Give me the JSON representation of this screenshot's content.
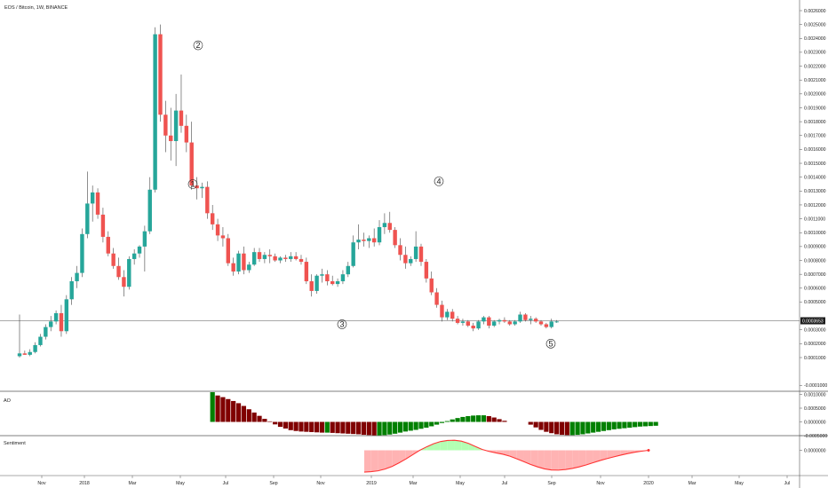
{
  "header": {
    "symbol": "EOS / Bitcoin, 1W, BINANCE"
  },
  "panels": {
    "ao_label": "AO",
    "sentiment_label": "Sentiment"
  },
  "colors": {
    "up": "#26a69a",
    "down": "#ef5350",
    "ao_up": "#008000",
    "ao_down": "#800000",
    "sentiment_line": "#ff3333",
    "sentiment_fill": "#ffb3b3",
    "sentiment_pos_fill": "#b3ffb3"
  },
  "chart_data": {
    "type": "candlestick",
    "x_axis_ticks": [
      "Nov",
      "2018",
      "Mar",
      "May",
      "Jul",
      "Sep",
      "Nov",
      "2019",
      "Mar",
      "May",
      "Jul",
      "Sep",
      "Nov",
      "2020",
      "Mar",
      "May",
      "Jul"
    ],
    "price_axis": {
      "range": [
        -0.0001,
        0.0026
      ],
      "ticks": [
        "0.0026000",
        "0.0025000",
        "0.0024000",
        "0.0023000",
        "0.0022000",
        "0.0021000",
        "0.0020000",
        "0.0019000",
        "0.0018000",
        "0.0017000",
        "0.0016000",
        "0.0015000",
        "0.0014000",
        "0.0013000",
        "0.0012000",
        "0.0011000",
        "0.0010000",
        "0.0009000",
        "0.0008000",
        "0.0007000",
        "0.0006000",
        "0.0005000",
        "0.0003000",
        "0.0002000",
        "0.0001000",
        "-0.0001000"
      ],
      "current_price": "0.0003653"
    },
    "ao_axis": {
      "ticks": [
        "0.0010000",
        "0.0005000",
        "0.0000000",
        "-0.0005000"
      ]
    },
    "sentiment_axis": {
      "ticks": [
        "0.0000000"
      ]
    },
    "wave_labels": [
      {
        "label": "1",
        "value": 0.00135
      },
      {
        "label": "2",
        "value": 0.00235
      },
      {
        "label": "3",
        "value": 0.00034
      },
      {
        "label": "4",
        "value": 0.00137
      },
      {
        "label": "5",
        "value": 0.0002
      }
    ],
    "candles": [
      {
        "o": 0.00011,
        "h": 0.00041,
        "l": 0.0001,
        "c": 0.00013
      },
      {
        "o": 0.00013,
        "h": 0.00015,
        "l": 0.00012,
        "c": 0.00012
      },
      {
        "o": 0.00012,
        "h": 0.00016,
        "l": 0.00011,
        "c": 0.00014
      },
      {
        "o": 0.00014,
        "h": 0.00021,
        "l": 0.00013,
        "c": 0.00019
      },
      {
        "o": 0.00019,
        "h": 0.00027,
        "l": 0.00018,
        "c": 0.00025
      },
      {
        "o": 0.00025,
        "h": 0.00034,
        "l": 0.00023,
        "c": 0.00032
      },
      {
        "o": 0.00032,
        "h": 0.0004,
        "l": 0.00029,
        "c": 0.00036
      },
      {
        "o": 0.00036,
        "h": 0.00044,
        "l": 0.00034,
        "c": 0.00042
      },
      {
        "o": 0.00042,
        "h": 0.00048,
        "l": 0.00025,
        "c": 0.00029
      },
      {
        "o": 0.00029,
        "h": 0.00055,
        "l": 0.00027,
        "c": 0.00052
      },
      {
        "o": 0.00052,
        "h": 0.00068,
        "l": 0.00048,
        "c": 0.00065
      },
      {
        "o": 0.00065,
        "h": 0.00076,
        "l": 0.0006,
        "c": 0.00071
      },
      {
        "o": 0.00071,
        "h": 0.00103,
        "l": 0.00068,
        "c": 0.00099
      },
      {
        "o": 0.00099,
        "h": 0.00144,
        "l": 0.00096,
        "c": 0.00121
      },
      {
        "o": 0.00121,
        "h": 0.00134,
        "l": 0.00108,
        "c": 0.00129
      },
      {
        "o": 0.00129,
        "h": 0.00132,
        "l": 0.0011,
        "c": 0.00113
      },
      {
        "o": 0.00113,
        "h": 0.00118,
        "l": 0.00093,
        "c": 0.00097
      },
      {
        "o": 0.00097,
        "h": 0.00101,
        "l": 0.00083,
        "c": 0.00085
      },
      {
        "o": 0.00085,
        "h": 0.00089,
        "l": 0.00074,
        "c": 0.00076
      },
      {
        "o": 0.00076,
        "h": 0.00082,
        "l": 0.00066,
        "c": 0.00068
      },
      {
        "o": 0.00068,
        "h": 0.00073,
        "l": 0.00054,
        "c": 0.00061
      },
      {
        "o": 0.00061,
        "h": 0.00083,
        "l": 0.00059,
        "c": 0.00081
      },
      {
        "o": 0.00081,
        "h": 0.00088,
        "l": 0.00077,
        "c": 0.00085
      },
      {
        "o": 0.00085,
        "h": 0.00091,
        "l": 0.00082,
        "c": 0.0009
      },
      {
        "o": 0.0009,
        "h": 0.00105,
        "l": 0.00072,
        "c": 0.00101
      },
      {
        "o": 0.00101,
        "h": 0.0014,
        "l": 0.00099,
        "c": 0.00131
      },
      {
        "o": 0.00131,
        "h": 0.00248,
        "l": 0.00129,
        "c": 0.00243
      },
      {
        "o": 0.00243,
        "h": 0.0025,
        "l": 0.0018,
        "c": 0.00185
      },
      {
        "o": 0.00185,
        "h": 0.00195,
        "l": 0.00158,
        "c": 0.0017
      },
      {
        "o": 0.0017,
        "h": 0.0019,
        "l": 0.00152,
        "c": 0.00166
      },
      {
        "o": 0.00166,
        "h": 0.002,
        "l": 0.00148,
        "c": 0.00188
      },
      {
        "o": 0.00188,
        "h": 0.00214,
        "l": 0.00172,
        "c": 0.00177
      },
      {
        "o": 0.00177,
        "h": 0.00185,
        "l": 0.00158,
        "c": 0.00165
      },
      {
        "o": 0.00165,
        "h": 0.0018,
        "l": 0.00131,
        "c": 0.00134
      },
      {
        "o": 0.00134,
        "h": 0.0014,
        "l": 0.00124,
        "c": 0.00132
      },
      {
        "o": 0.00132,
        "h": 0.00136,
        "l": 0.00125,
        "c": 0.00133
      },
      {
        "o": 0.00133,
        "h": 0.00137,
        "l": 0.0011,
        "c": 0.00114
      },
      {
        "o": 0.00114,
        "h": 0.0012,
        "l": 0.00102,
        "c": 0.00106
      },
      {
        "o": 0.00106,
        "h": 0.0011,
        "l": 0.00094,
        "c": 0.00098
      },
      {
        "o": 0.00098,
        "h": 0.00104,
        "l": 0.0009,
        "c": 0.00096
      },
      {
        "o": 0.00096,
        "h": 0.00099,
        "l": 0.00076,
        "c": 0.00078
      },
      {
        "o": 0.00078,
        "h": 0.00082,
        "l": 0.00069,
        "c": 0.00072
      },
      {
        "o": 0.00072,
        "h": 0.00087,
        "l": 0.0007,
        "c": 0.00085
      },
      {
        "o": 0.00085,
        "h": 0.0009,
        "l": 0.0007,
        "c": 0.00073
      },
      {
        "o": 0.00073,
        "h": 0.00079,
        "l": 0.00071,
        "c": 0.00077
      },
      {
        "o": 0.00077,
        "h": 0.00089,
        "l": 0.00076,
        "c": 0.00086
      },
      {
        "o": 0.00086,
        "h": 0.00089,
        "l": 0.00079,
        "c": 0.00081
      },
      {
        "o": 0.00081,
        "h": 0.00086,
        "l": 0.00078,
        "c": 0.00084
      },
      {
        "o": 0.00084,
        "h": 0.00088,
        "l": 0.00078,
        "c": 0.00083
      },
      {
        "o": 0.00083,
        "h": 0.00085,
        "l": 0.00079,
        "c": 0.0008
      },
      {
        "o": 0.0008,
        "h": 0.00083,
        "l": 0.00078,
        "c": 0.00082
      },
      {
        "o": 0.00082,
        "h": 0.00084,
        "l": 0.00079,
        "c": 0.00081
      },
      {
        "o": 0.00081,
        "h": 0.00086,
        "l": 0.00079,
        "c": 0.00083
      },
      {
        "o": 0.00083,
        "h": 0.00086,
        "l": 0.0008,
        "c": 0.00081
      },
      {
        "o": 0.00081,
        "h": 0.00084,
        "l": 0.00077,
        "c": 0.00079
      },
      {
        "o": 0.00079,
        "h": 0.00082,
        "l": 0.00063,
        "c": 0.00065
      },
      {
        "o": 0.00065,
        "h": 0.0007,
        "l": 0.00054,
        "c": 0.00058
      },
      {
        "o": 0.00058,
        "h": 0.0007,
        "l": 0.00056,
        "c": 0.00069
      },
      {
        "o": 0.00069,
        "h": 0.00074,
        "l": 0.00064,
        "c": 0.0007
      },
      {
        "o": 0.0007,
        "h": 0.00073,
        "l": 0.00062,
        "c": 0.00065
      },
      {
        "o": 0.00065,
        "h": 0.00069,
        "l": 0.00062,
        "c": 0.00063
      },
      {
        "o": 0.00063,
        "h": 0.00067,
        "l": 0.00061,
        "c": 0.00065
      },
      {
        "o": 0.00065,
        "h": 0.00073,
        "l": 0.00063,
        "c": 0.0007
      },
      {
        "o": 0.0007,
        "h": 0.00079,
        "l": 0.00068,
        "c": 0.00076
      },
      {
        "o": 0.00076,
        "h": 0.00098,
        "l": 0.00075,
        "c": 0.00093
      },
      {
        "o": 0.00093,
        "h": 0.00106,
        "l": 0.00088,
        "c": 0.00095
      },
      {
        "o": 0.00095,
        "h": 0.001,
        "l": 0.0009,
        "c": 0.00094
      },
      {
        "o": 0.00094,
        "h": 0.00098,
        "l": 0.00089,
        "c": 0.00096
      },
      {
        "o": 0.00096,
        "h": 0.00103,
        "l": 0.0009,
        "c": 0.00093
      },
      {
        "o": 0.00093,
        "h": 0.00109,
        "l": 0.00091,
        "c": 0.00104
      },
      {
        "o": 0.00104,
        "h": 0.00114,
        "l": 0.00099,
        "c": 0.00107
      },
      {
        "o": 0.00107,
        "h": 0.00115,
        "l": 0.001,
        "c": 0.00102
      },
      {
        "o": 0.00102,
        "h": 0.00104,
        "l": 0.00089,
        "c": 0.00091
      },
      {
        "o": 0.00091,
        "h": 0.00096,
        "l": 0.0008,
        "c": 0.00084
      },
      {
        "o": 0.00084,
        "h": 0.0009,
        "l": 0.00074,
        "c": 0.00078
      },
      {
        "o": 0.00078,
        "h": 0.00083,
        "l": 0.00076,
        "c": 0.00081
      },
      {
        "o": 0.00081,
        "h": 0.00101,
        "l": 0.00079,
        "c": 0.0009
      },
      {
        "o": 0.0009,
        "h": 0.00092,
        "l": 0.00076,
        "c": 0.00079
      },
      {
        "o": 0.00079,
        "h": 0.00081,
        "l": 0.00064,
        "c": 0.00067
      },
      {
        "o": 0.00067,
        "h": 0.00072,
        "l": 0.00055,
        "c": 0.00057
      },
      {
        "o": 0.00057,
        "h": 0.0006,
        "l": 0.00046,
        "c": 0.00048
      },
      {
        "o": 0.00048,
        "h": 0.00051,
        "l": 0.00036,
        "c": 0.00039
      },
      {
        "o": 0.00039,
        "h": 0.00045,
        "l": 0.00037,
        "c": 0.00043
      },
      {
        "o": 0.00043,
        "h": 0.00045,
        "l": 0.00036,
        "c": 0.00038
      },
      {
        "o": 0.00038,
        "h": 0.0004,
        "l": 0.00034,
        "c": 0.00035
      },
      {
        "o": 0.00035,
        "h": 0.00038,
        "l": 0.00033,
        "c": 0.00036
      },
      {
        "o": 0.00036,
        "h": 0.00037,
        "l": 0.00032,
        "c": 0.00033
      },
      {
        "o": 0.00033,
        "h": 0.00035,
        "l": 0.00029,
        "c": 0.00031
      },
      {
        "o": 0.00031,
        "h": 0.00037,
        "l": 0.0003,
        "c": 0.00036
      },
      {
        "o": 0.00036,
        "h": 0.0004,
        "l": 0.00034,
        "c": 0.00039
      },
      {
        "o": 0.00039,
        "h": 0.0004,
        "l": 0.00031,
        "c": 0.00033
      },
      {
        "o": 0.00033,
        "h": 0.00037,
        "l": 0.00032,
        "c": 0.00036
      },
      {
        "o": 0.00036,
        "h": 0.00038,
        "l": 0.00034,
        "c": 0.00037
      },
      {
        "o": 0.00037,
        "h": 0.00039,
        "l": 0.00035,
        "c": 0.00036
      },
      {
        "o": 0.00036,
        "h": 0.00037,
        "l": 0.00033,
        "c": 0.00034
      },
      {
        "o": 0.00034,
        "h": 0.00037,
        "l": 0.00033,
        "c": 0.00036
      },
      {
        "o": 0.00036,
        "h": 0.00043,
        "l": 0.00035,
        "c": 0.00041
      },
      {
        "o": 0.00041,
        "h": 0.00042,
        "l": 0.00036,
        "c": 0.00037
      },
      {
        "o": 0.00037,
        "h": 0.0004,
        "l": 0.00034,
        "c": 0.00038
      },
      {
        "o": 0.00038,
        "h": 0.00039,
        "l": 0.00035,
        "c": 0.00036
      },
      {
        "o": 0.00036,
        "h": 0.00037,
        "l": 0.00033,
        "c": 0.00034
      },
      {
        "o": 0.00034,
        "h": 0.00035,
        "l": 0.00031,
        "c": 0.00032
      },
      {
        "o": 0.00032,
        "h": 0.00038,
        "l": 0.00031,
        "c": 0.00036
      },
      {
        "o": 0.00036,
        "h": 0.00037,
        "l": 0.00035,
        "c": 0.00036
      }
    ],
    "ao": [
      0.00108,
      0.00096,
      0.0009,
      0.00083,
      0.00076,
      0.00068,
      0.00058,
      0.00046,
      0.00034,
      0.00022,
      0.00011,
      2e-05,
      -9e-05,
      -0.00018,
      -0.00024,
      -0.0003,
      -0.00033,
      -0.00035,
      -0.00036,
      -0.00037,
      -0.00038,
      -0.00039,
      -0.00039,
      -0.0004,
      -0.00041,
      -0.00042,
      -0.00043,
      -0.00044,
      -0.00045,
      -0.00047,
      -0.00048,
      -0.00049,
      -0.00049,
      -0.00048,
      -0.00046,
      -0.00043,
      -0.00039,
      -0.00035,
      -0.00032,
      -0.00029,
      -0.00025,
      -0.00021,
      -0.00016,
      -0.0001,
      -4e-05,
      3e-05,
      9e-05,
      0.00014,
      0.00018,
      0.00021,
      0.00023,
      0.00024,
      0.00024,
      0.00021,
      0.00016,
      0.0001,
      4e-05,
      null,
      null,
      null,
      null,
      -0.0001,
      -0.0002,
      -0.00029,
      -0.00036,
      -0.00041,
      -0.00045,
      -0.00047,
      -0.00048,
      -0.00048,
      -0.00047,
      -0.00045,
      -0.00042,
      -0.00039,
      -0.00036,
      -0.00033,
      -0.0003,
      -0.00027,
      -0.00025,
      -0.00023,
      -0.00021,
      -0.00019,
      -0.00017,
      -0.00016,
      -0.00015,
      -0.00014
    ],
    "sentiment": [
      -0.001,
      -0.00098,
      -0.00094,
      -0.00086,
      -0.00074,
      -0.00058,
      -0.0004,
      -0.0002,
      0.0,
      0.00016,
      0.0003,
      0.0004,
      0.00045,
      0.00046,
      0.00042,
      0.00032,
      0.00018,
      4e-05,
      -5e-05,
      -0.00012,
      -0.00018,
      -0.00027,
      -0.00039,
      -0.00052,
      -0.00065,
      -0.00076,
      -0.00085,
      -0.0009,
      -0.00091,
      -0.00088,
      -0.00083,
      -0.00076,
      -0.00067,
      -0.00057,
      -0.00047,
      -0.00038,
      -0.0003,
      -0.00022,
      -0.00015,
      -9e-05,
      -4e-05,
      0.0
    ]
  }
}
